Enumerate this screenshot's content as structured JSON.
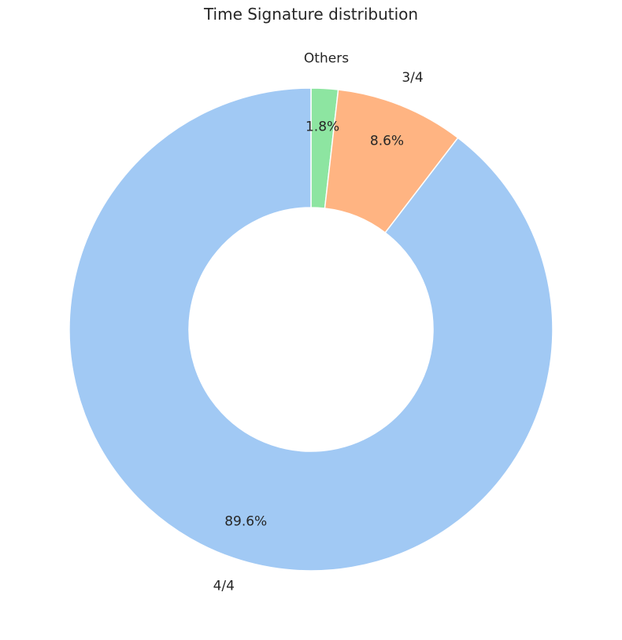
{
  "chart_data": {
    "type": "pie",
    "title": "Time Signature distribution",
    "donut": true,
    "start_angle_deg": 90,
    "direction": "clockwise",
    "slices": [
      {
        "label": "Others",
        "value": 1.8,
        "pct_label": "1.8%",
        "color": "#8de5a1"
      },
      {
        "label": "3/4",
        "value": 8.6,
        "pct_label": "8.6%",
        "color": "#ffb482"
      },
      {
        "label": "4/4",
        "value": 89.6,
        "pct_label": "89.6%",
        "color": "#a1c9f4"
      }
    ]
  }
}
